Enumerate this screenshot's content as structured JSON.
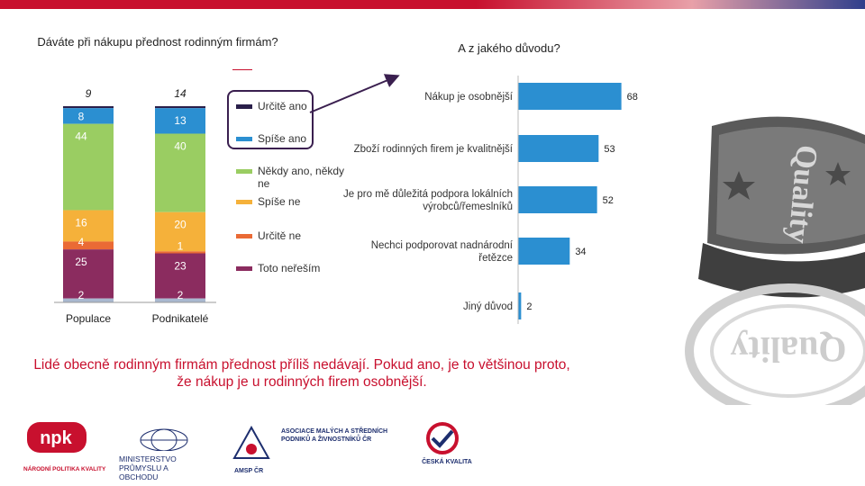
{
  "left_question": "Dáváte při nákupu přednost rodinným firmám?",
  "right_question": "A z jakého důvodu?",
  "conclusion": "Lidé obecně rodinným firmám přednost příliš nedávají. Pokud ano, je to většinou proto, že nákup je u rodinných firem osobnější.",
  "stamp_text": "Quality",
  "chart_data": [
    {
      "type": "bar",
      "stacked": true,
      "orientation": "vertical",
      "categories": [
        "Populace",
        "Podnikatelé"
      ],
      "top_totals": [
        "9",
        "14"
      ],
      "series": [
        {
          "name": "Určitě ano",
          "color": "#2a1f4a",
          "values": [
            1,
            1
          ]
        },
        {
          "name": "Spíše ano",
          "color": "#2b8fd1",
          "values": [
            8,
            13
          ]
        },
        {
          "name": "Někdy ano, někdy ne",
          "color": "#9acd62",
          "values": [
            44,
            40
          ]
        },
        {
          "name": "Spíše ne",
          "color": "#f5b13a",
          "values": [
            16,
            20
          ]
        },
        {
          "name": "Určitě ne",
          "color": "#ea6a35",
          "values": [
            4,
            1
          ]
        },
        {
          "name": "Toto neřeším",
          "color": "#8b2c5f",
          "values": [
            25,
            23
          ]
        },
        {
          "name": "",
          "color": "#a9b8cf",
          "values": [
            2,
            2
          ]
        }
      ],
      "labels_shown": [
        [
          "",
          "8",
          "44",
          "16",
          "4",
          "25",
          "2"
        ],
        [
          "",
          "13",
          "40",
          "20",
          "1",
          "23",
          "2"
        ]
      ],
      "legend_position": "right"
    },
    {
      "type": "bar",
      "orientation": "horizontal",
      "color": "#2b8fd1",
      "categories": [
        "Nákup je osobnější",
        "Zboží rodinných firem je kvalitnější",
        "Je pro mě důležitá podpora lokálních výrobců/řemeslníků",
        "Nechci podporovat nadnárodní řetězce",
        "Jiný důvod"
      ],
      "values": [
        68,
        53,
        52,
        34,
        2
      ],
      "xlim": [
        0,
        70
      ]
    }
  ],
  "logos": [
    {
      "name": "NPK",
      "text": "npk",
      "subtitle": "NÁRODNÍ POLITIKA KVALITY"
    },
    {
      "name": "MPO",
      "text": "MINISTERSTVO PRŮMYSLU A OBCHODU"
    },
    {
      "name": "AMSP",
      "text": "ASOCIACE MALÝCH A STŘEDNÍCH PODNIKŮ A ŽIVNOSTNÍKŮ ČR",
      "short": "AMSP ČR"
    },
    {
      "name": "Česká kvalita",
      "text": "ČESKÁ KVALITA"
    }
  ],
  "colors": {
    "accent": "#c8102e",
    "navy": "#1d2e6e",
    "bar_blue": "#2b8fd1"
  }
}
